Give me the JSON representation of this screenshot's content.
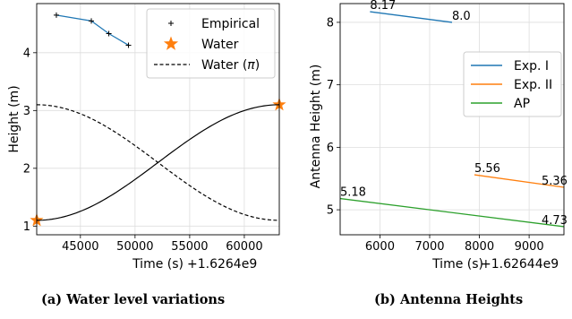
{
  "captions": {
    "a_letter": "(a)",
    "a_text": "Water level variations",
    "b_letter": "(b)",
    "b_text": "Antenna Heights"
  },
  "chart_data": [
    {
      "type": "line",
      "title": "",
      "xlabel": "Time (s)",
      "x_offset_label": "+1.6264e9",
      "ylabel": "Height (m)",
      "xlim": [
        41000,
        63200
      ],
      "ylim": [
        0.85,
        4.85
      ],
      "xticks": [
        45000,
        50000,
        55000,
        60000
      ],
      "xtick_labels": [
        "45000",
        "50000",
        "55000",
        "60000"
      ],
      "yticks": [
        1,
        2,
        3,
        4
      ],
      "ytick_labels": [
        "1",
        "2",
        "3",
        "4"
      ],
      "grid": true,
      "legend_position": "top-right",
      "series": [
        {
          "name": "Empirical",
          "style": "markers-plus-with-line",
          "marker_color": "#000000",
          "line_color": "#1f77b4",
          "points": [
            [
              42800,
              4.65
            ],
            [
              46000,
              4.55
            ],
            [
              47600,
              4.33
            ],
            [
              49400,
              4.13
            ]
          ]
        },
        {
          "name": "Water",
          "style": "star-markers",
          "color": "#ff7f0e",
          "points": [
            [
              41000,
              1.1
            ],
            [
              63200,
              3.1
            ]
          ]
        },
        {
          "name": "Water (π)",
          "style": "dashed",
          "color": "#000000",
          "function": "cosine",
          "x_start": 41000,
          "x_end": 63200,
          "y_start": 3.1,
          "y_end": 1.1
        },
        {
          "name": "",
          "style": "solid",
          "color": "#000000",
          "function": "cosine",
          "x_start": 41000,
          "x_end": 63200,
          "y_start": 1.1,
          "y_end": 3.1
        }
      ],
      "legend": [
        "Empirical",
        "Water",
        "Water (π)"
      ],
      "legend_labels": [
        "Empirical",
        "Water",
        "Water ("
      ],
      "legend_pi_symbol": "π",
      "legend_paren_close": ")"
    },
    {
      "type": "line",
      "title": "",
      "xlabel": "Time (s)",
      "x_offset_label": "+1.62644e9",
      "ylabel": "Antenna Height (m)",
      "xlim": [
        5200,
        9700
      ],
      "ylim": [
        4.6,
        8.3
      ],
      "xticks": [
        6000,
        7000,
        8000,
        9000
      ],
      "xtick_labels": [
        "6000",
        "7000",
        "8000",
        "9000"
      ],
      "yticks": [
        5,
        6,
        7,
        8
      ],
      "ytick_labels": [
        "5",
        "6",
        "7",
        "8"
      ],
      "grid": true,
      "legend_position": "center-right",
      "series": [
        {
          "name": "Exp. I",
          "color": "#1f77b4",
          "points": [
            [
              5800,
              8.17
            ],
            [
              7450,
              8.0
            ]
          ]
        },
        {
          "name": "Exp. II",
          "color": "#ff7f0e",
          "points": [
            [
              7900,
              5.56
            ],
            [
              9700,
              5.36
            ]
          ]
        },
        {
          "name": "AP",
          "color": "#2ca02c",
          "points": [
            [
              5200,
              5.18
            ],
            [
              9700,
              4.73
            ]
          ]
        }
      ],
      "annotations": [
        {
          "text": "8.17",
          "x": 5800,
          "y": 8.17
        },
        {
          "text": "8.0",
          "x": 7450,
          "y": 8.0
        },
        {
          "text": "5.56",
          "x": 7900,
          "y": 5.56
        },
        {
          "text": "5.36",
          "x": 9700,
          "y": 5.36
        },
        {
          "text": "5.18",
          "x": 5200,
          "y": 5.18
        },
        {
          "text": "4.73",
          "x": 9700,
          "y": 4.73
        }
      ],
      "legend": [
        "Exp. I",
        "Exp. II",
        "AP"
      ]
    }
  ]
}
